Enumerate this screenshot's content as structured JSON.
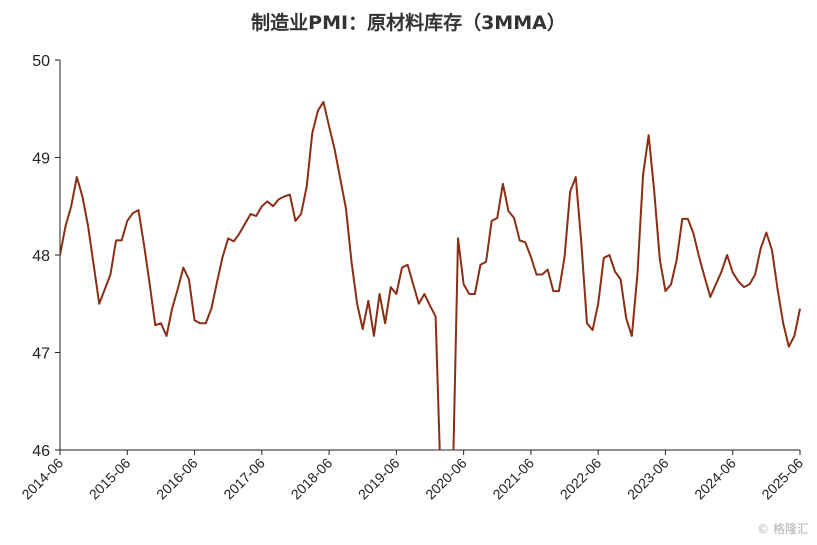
{
  "chart_data": {
    "type": "line",
    "title": "制造业PMI：原材料库存（3MMA）",
    "xlabel": "",
    "ylabel": "",
    "ylim": [
      46,
      50
    ],
    "yticks": [
      46,
      47,
      48,
      49,
      50
    ],
    "xticks": [
      "2014-06",
      "2015-06",
      "2016-06",
      "2017-06",
      "2018-06",
      "2019-06",
      "2020-06",
      "2021-06",
      "2022-06",
      "2023-06",
      "2024-06",
      "2025-06"
    ],
    "grid": false,
    "legend": "none",
    "line_color": "#8B2E16",
    "series": [
      {
        "start": "2014-06",
        "values": [
          48.0,
          48.3,
          48.5,
          48.8,
          48.6,
          48.3,
          47.9,
          47.5,
          47.65,
          47.8,
          48.15,
          48.15,
          48.35,
          48.43,
          48.46,
          48.1,
          47.7,
          47.28,
          47.3,
          47.17,
          47.45,
          47.65,
          47.87,
          47.75,
          47.33,
          47.3,
          47.3,
          47.45,
          47.72,
          47.98,
          48.17,
          48.14,
          48.22,
          48.32,
          48.42,
          48.4,
          48.5,
          48.55,
          48.5,
          48.57,
          48.6,
          48.62,
          48.35,
          48.42,
          48.7,
          49.25,
          49.48,
          49.57,
          49.32,
          49.08,
          48.78,
          48.48,
          47.93,
          47.5,
          47.24,
          47.53,
          47.17,
          47.6,
          47.3,
          47.67,
          47.6,
          47.87,
          47.9,
          47.7,
          47.5,
          47.6,
          47.48,
          47.37,
          45.5,
          45.3,
          45.5,
          48.17,
          47.7,
          47.6,
          47.6,
          47.9,
          47.93,
          48.35,
          48.38,
          48.73,
          48.45,
          48.38,
          48.15,
          48.13,
          47.98,
          47.8,
          47.8,
          47.85,
          47.63,
          47.63,
          47.98,
          48.65,
          48.8,
          48.12,
          47.3,
          47.23,
          47.5,
          47.97,
          48.0,
          47.83,
          47.75,
          47.35,
          47.17,
          47.8,
          48.82,
          49.23,
          48.65,
          47.95,
          47.63,
          47.7,
          47.95,
          48.37,
          48.37,
          48.22,
          47.98,
          47.77,
          47.57,
          47.7,
          47.83,
          48.0,
          47.82,
          47.73,
          47.67,
          47.7,
          47.8,
          48.07,
          48.23,
          48.05,
          47.65,
          47.3,
          47.06,
          47.17,
          47.45
        ]
      }
    ]
  },
  "watermark": "© 格隆汇"
}
